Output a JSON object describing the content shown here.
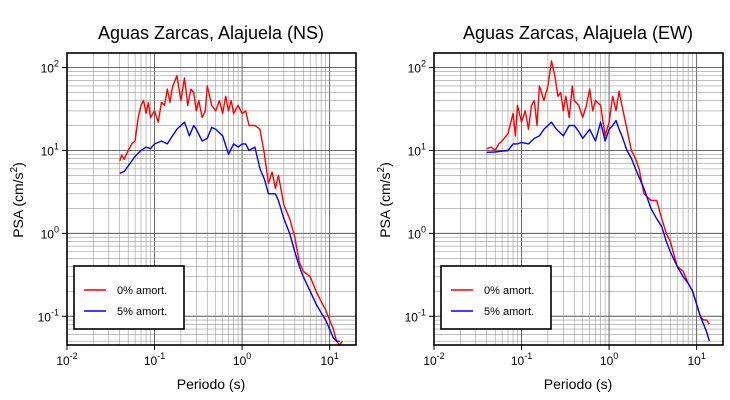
{
  "chart_data": [
    {
      "type": "line",
      "title": "Aguas Zarcas, Alajuela (NS)",
      "xlabel": "Periodo (s)",
      "ylabel_base": "PSA (cm/s",
      "ylabel_sup": "2",
      "ylabel_tail": ")",
      "xscale": "log",
      "yscale": "log",
      "xlim": [
        0.01,
        20
      ],
      "ylim": [
        0.045,
        150
      ],
      "x_ticks": [
        {
          "base": "10",
          "exp": "-2"
        },
        {
          "base": "10",
          "exp": "-1"
        },
        {
          "base": "10",
          "exp": "0"
        },
        {
          "base": "10",
          "exp": "1"
        }
      ],
      "y_ticks": [
        {
          "base": "10",
          "exp": "-1"
        },
        {
          "base": "10",
          "exp": "0"
        },
        {
          "base": "10",
          "exp": "1"
        },
        {
          "base": "10",
          "exp": "2"
        }
      ],
      "grid": true,
      "legend_position": "bottom-left",
      "series": [
        {
          "name": "0% amort.",
          "color": "#ff0000",
          "points": [
            [
              0.04,
              7.5
            ],
            [
              0.042,
              8.8
            ],
            [
              0.045,
              7.8
            ],
            [
              0.05,
              10
            ],
            [
              0.055,
              12
            ],
            [
              0.06,
              13
            ],
            [
              0.065,
              25
            ],
            [
              0.07,
              35
            ],
            [
              0.075,
              40
            ],
            [
              0.08,
              28
            ],
            [
              0.085,
              38
            ],
            [
              0.09,
              25
            ],
            [
              0.1,
              30
            ],
            [
              0.11,
              22
            ],
            [
              0.12,
              38
            ],
            [
              0.13,
              35
            ],
            [
              0.14,
              55
            ],
            [
              0.15,
              38
            ],
            [
              0.16,
              58
            ],
            [
              0.18,
              80
            ],
            [
              0.2,
              40
            ],
            [
              0.22,
              75
            ],
            [
              0.24,
              35
            ],
            [
              0.26,
              55
            ],
            [
              0.28,
              50
            ],
            [
              0.3,
              30
            ],
            [
              0.32,
              40
            ],
            [
              0.35,
              25
            ],
            [
              0.38,
              30
            ],
            [
              0.4,
              60
            ],
            [
              0.45,
              35
            ],
            [
              0.5,
              30
            ],
            [
              0.55,
              40
            ],
            [
              0.6,
              28
            ],
            [
              0.65,
              45
            ],
            [
              0.7,
              30
            ],
            [
              0.75,
              40
            ],
            [
              0.8,
              28
            ],
            [
              0.9,
              35
            ],
            [
              1.0,
              28
            ],
            [
              1.1,
              30
            ],
            [
              1.2,
              20
            ],
            [
              1.4,
              20
            ],
            [
              1.6,
              18
            ],
            [
              1.8,
              9
            ],
            [
              2.0,
              4
            ],
            [
              2.2,
              5.5
            ],
            [
              2.4,
              3.5
            ],
            [
              2.6,
              5
            ],
            [
              3.0,
              2.2
            ],
            [
              3.5,
              1.5
            ],
            [
              4.0,
              0.9
            ],
            [
              4.5,
              0.45
            ],
            [
              5.0,
              0.35
            ],
            [
              6.0,
              0.3
            ],
            [
              7.0,
              0.2
            ],
            [
              8.0,
              0.15
            ],
            [
              9.0,
              0.12
            ],
            [
              10.0,
              0.09
            ],
            [
              11.0,
              0.07
            ],
            [
              12.0,
              0.05
            ],
            [
              13.0,
              0.045
            ],
            [
              14.0,
              0.05
            ]
          ]
        },
        {
          "name": "5% amort.",
          "color": "#0000ff",
          "points": [
            [
              0.04,
              5.3
            ],
            [
              0.045,
              5.6
            ],
            [
              0.05,
              6.5
            ],
            [
              0.06,
              8.5
            ],
            [
              0.07,
              10
            ],
            [
              0.08,
              11
            ],
            [
              0.09,
              10.5
            ],
            [
              0.1,
              12
            ],
            [
              0.12,
              13
            ],
            [
              0.14,
              12
            ],
            [
              0.16,
              15
            ],
            [
              0.18,
              18
            ],
            [
              0.2,
              20
            ],
            [
              0.22,
              22
            ],
            [
              0.25,
              15
            ],
            [
              0.28,
              20
            ],
            [
              0.3,
              18
            ],
            [
              0.35,
              13
            ],
            [
              0.4,
              14
            ],
            [
              0.45,
              19
            ],
            [
              0.5,
              18
            ],
            [
              0.6,
              15
            ],
            [
              0.7,
              9
            ],
            [
              0.8,
              12
            ],
            [
              0.9,
              11
            ],
            [
              1.0,
              12
            ],
            [
              1.1,
              12
            ],
            [
              1.2,
              10
            ],
            [
              1.4,
              11
            ],
            [
              1.6,
              6
            ],
            [
              1.8,
              4.5
            ],
            [
              2.0,
              3
            ],
            [
              2.4,
              3
            ],
            [
              2.6,
              2.5
            ],
            [
              3.0,
              1.5
            ],
            [
              3.5,
              1
            ],
            [
              4.0,
              0.6
            ],
            [
              4.5,
              0.4
            ],
            [
              5.0,
              0.3
            ],
            [
              6.0,
              0.2
            ],
            [
              7.0,
              0.14
            ],
            [
              8.0,
              0.11
            ],
            [
              9.0,
              0.09
            ],
            [
              10.0,
              0.07
            ],
            [
              11.0,
              0.055
            ],
            [
              12.0,
              0.05
            ],
            [
              13.0,
              0.05
            ]
          ]
        }
      ]
    },
    {
      "type": "line",
      "title": "Aguas Zarcas, Alajuela (EW)",
      "xlabel": "Periodo (s)",
      "ylabel_base": "PSA (cm/s",
      "ylabel_sup": "2",
      "ylabel_tail": ")",
      "xscale": "log",
      "yscale": "log",
      "xlim": [
        0.01,
        20
      ],
      "ylim": [
        0.045,
        150
      ],
      "x_ticks": [
        {
          "base": "10",
          "exp": "-2"
        },
        {
          "base": "10",
          "exp": "-1"
        },
        {
          "base": "10",
          "exp": "0"
        },
        {
          "base": "10",
          "exp": "1"
        }
      ],
      "y_ticks": [
        {
          "base": "10",
          "exp": "-1"
        },
        {
          "base": "10",
          "exp": "0"
        },
        {
          "base": "10",
          "exp": "1"
        },
        {
          "base": "10",
          "exp": "2"
        }
      ],
      "grid": true,
      "legend_position": "bottom-left",
      "series": [
        {
          "name": "0% amort.",
          "color": "#ff0000",
          "points": [
            [
              0.04,
              10.5
            ],
            [
              0.045,
              11
            ],
            [
              0.05,
              10
            ],
            [
              0.055,
              12
            ],
            [
              0.06,
              13
            ],
            [
              0.07,
              16
            ],
            [
              0.08,
              28
            ],
            [
              0.085,
              15
            ],
            [
              0.09,
              35
            ],
            [
              0.1,
              22
            ],
            [
              0.11,
              30
            ],
            [
              0.12,
              18
            ],
            [
              0.13,
              35
            ],
            [
              0.14,
              40
            ],
            [
              0.15,
              20
            ],
            [
              0.16,
              60
            ],
            [
              0.18,
              40
            ],
            [
              0.2,
              60
            ],
            [
              0.22,
              120
            ],
            [
              0.24,
              80
            ],
            [
              0.26,
              45
            ],
            [
              0.28,
              50
            ],
            [
              0.3,
              30
            ],
            [
              0.32,
              45
            ],
            [
              0.35,
              25
            ],
            [
              0.38,
              60
            ],
            [
              0.4,
              40
            ],
            [
              0.45,
              35
            ],
            [
              0.5,
              25
            ],
            [
              0.55,
              35
            ],
            [
              0.6,
              55
            ],
            [
              0.65,
              30
            ],
            [
              0.7,
              40
            ],
            [
              0.8,
              35
            ],
            [
              0.9,
              15
            ],
            [
              1.0,
              22
            ],
            [
              1.1,
              45
            ],
            [
              1.2,
              30
            ],
            [
              1.3,
              52
            ],
            [
              1.4,
              35
            ],
            [
              1.6,
              18
            ],
            [
              1.8,
              10
            ],
            [
              2.0,
              8
            ],
            [
              2.2,
              6
            ],
            [
              2.5,
              3
            ],
            [
              3.0,
              2.5
            ],
            [
              3.5,
              2.5
            ],
            [
              4.0,
              1.5
            ],
            [
              4.5,
              1
            ],
            [
              5.0,
              0.8
            ],
            [
              6.0,
              0.4
            ],
            [
              7.0,
              0.35
            ],
            [
              8.0,
              0.25
            ],
            [
              9.0,
              0.2
            ],
            [
              10.0,
              0.14
            ],
            [
              11.0,
              0.1
            ],
            [
              12.0,
              0.09
            ],
            [
              13.0,
              0.09
            ],
            [
              14.0,
              0.08
            ]
          ]
        },
        {
          "name": "5% amort.",
          "color": "#0000ff",
          "points": [
            [
              0.04,
              9.5
            ],
            [
              0.05,
              9.6
            ],
            [
              0.06,
              9.8
            ],
            [
              0.07,
              10
            ],
            [
              0.08,
              12
            ],
            [
              0.09,
              12
            ],
            [
              0.1,
              12.5
            ],
            [
              0.12,
              12
            ],
            [
              0.14,
              14
            ],
            [
              0.16,
              15
            ],
            [
              0.18,
              18
            ],
            [
              0.2,
              20
            ],
            [
              0.22,
              22
            ],
            [
              0.25,
              18
            ],
            [
              0.3,
              15
            ],
            [
              0.35,
              20
            ],
            [
              0.4,
              20
            ],
            [
              0.45,
              17
            ],
            [
              0.5,
              14
            ],
            [
              0.6,
              18
            ],
            [
              0.7,
              13
            ],
            [
              0.8,
              22
            ],
            [
              0.9,
              13
            ],
            [
              1.0,
              18
            ],
            [
              1.1,
              20
            ],
            [
              1.2,
              23
            ],
            [
              1.3,
              18
            ],
            [
              1.4,
              15
            ],
            [
              1.6,
              10
            ],
            [
              1.8,
              8
            ],
            [
              2.0,
              6
            ],
            [
              2.5,
              3.5
            ],
            [
              3.0,
              2
            ],
            [
              3.5,
              1.5
            ],
            [
              4.0,
              1.2
            ],
            [
              4.5,
              0.8
            ],
            [
              5.0,
              0.6
            ],
            [
              6.0,
              0.4
            ],
            [
              7.0,
              0.3
            ],
            [
              8.0,
              0.25
            ],
            [
              9.0,
              0.2
            ],
            [
              10.0,
              0.14
            ],
            [
              11.0,
              0.1
            ],
            [
              12.0,
              0.08
            ],
            [
              13.0,
              0.065
            ],
            [
              14.0,
              0.05
            ]
          ]
        }
      ]
    }
  ]
}
